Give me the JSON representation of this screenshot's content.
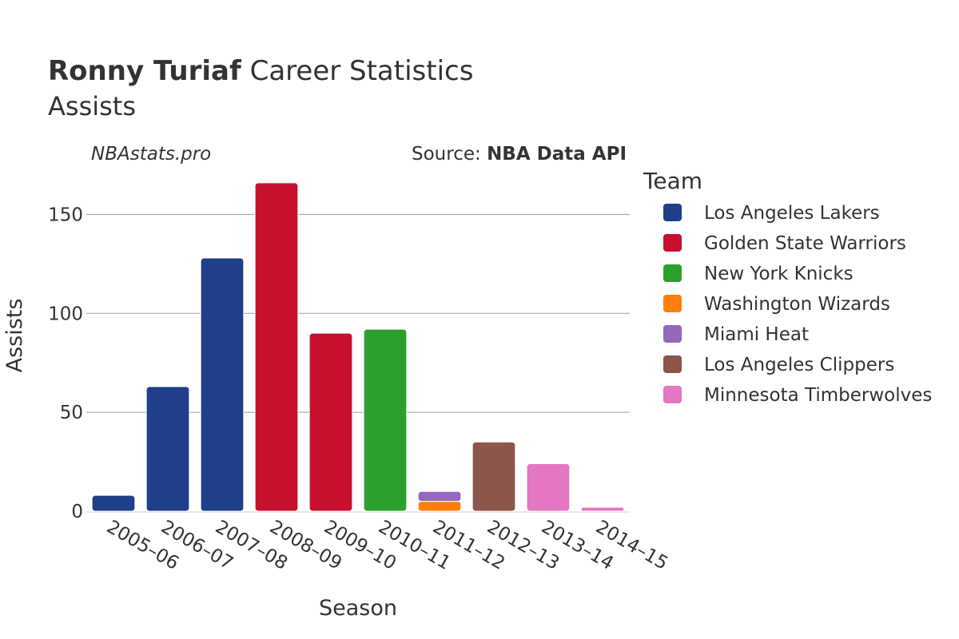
{
  "title": {
    "bold": "Ronny Turiaf",
    "rest": " Career Statistics",
    "subtitle": "Assists"
  },
  "watermark": "NBAstats.pro",
  "source": {
    "prefix": "Source: ",
    "name": "NBA Data API"
  },
  "legend_title": "Team",
  "teams": [
    {
      "name": "Los Angeles Lakers",
      "color": "#1f3f8a"
    },
    {
      "name": "Golden State Warriors",
      "color": "#c8102e"
    },
    {
      "name": "New York Knicks",
      "color": "#2ca02c"
    },
    {
      "name": "Washington Wizards",
      "color": "#ff7f0e"
    },
    {
      "name": "Miami Heat",
      "color": "#9467bd"
    },
    {
      "name": "Los Angeles Clippers",
      "color": "#8c564b"
    },
    {
      "name": "Minnesota Timberwolves",
      "color": "#e377c2"
    }
  ],
  "chart_data": {
    "type": "bar",
    "stacked": true,
    "title": "Ronny Turiaf Career Statistics",
    "subtitle": "Assists",
    "xlabel": "Season",
    "ylabel": "Assists",
    "ylim": [
      0,
      172
    ],
    "yticks": [
      0,
      50,
      100,
      150
    ],
    "grid": true,
    "legend_position": "right",
    "categories": [
      "2005–06",
      "2006–07",
      "2007–08",
      "2008–09",
      "2009–10",
      "2010–11",
      "2011–12",
      "2012–13",
      "2013–14",
      "2014–15"
    ],
    "series": [
      {
        "name": "Los Angeles Lakers",
        "values": [
          8,
          63,
          128,
          0,
          0,
          0,
          0,
          0,
          0,
          0
        ]
      },
      {
        "name": "Golden State Warriors",
        "values": [
          0,
          0,
          0,
          166,
          90,
          0,
          0,
          0,
          0,
          0
        ]
      },
      {
        "name": "New York Knicks",
        "values": [
          0,
          0,
          0,
          0,
          0,
          92,
          0,
          0,
          0,
          0
        ]
      },
      {
        "name": "Washington Wizards",
        "values": [
          0,
          0,
          0,
          0,
          0,
          0,
          5,
          0,
          0,
          0
        ]
      },
      {
        "name": "Miami Heat",
        "values": [
          0,
          0,
          0,
          0,
          0,
          0,
          5,
          0,
          0,
          0
        ]
      },
      {
        "name": "Los Angeles Clippers",
        "values": [
          0,
          0,
          0,
          0,
          0,
          0,
          0,
          35,
          0,
          0
        ]
      },
      {
        "name": "Minnesota Timberwolves",
        "values": [
          0,
          0,
          0,
          0,
          0,
          0,
          0,
          0,
          24,
          2
        ]
      }
    ]
  }
}
